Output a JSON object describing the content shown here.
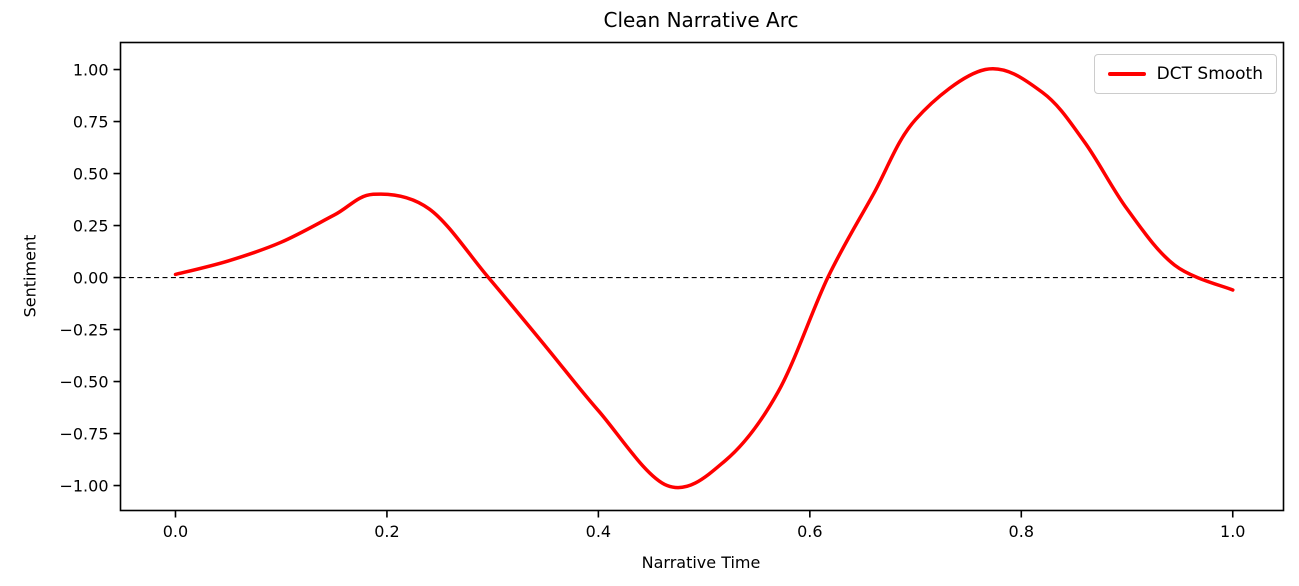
{
  "figure": {
    "background": "#ffffff",
    "text_color": "#000000"
  },
  "chart_data": {
    "type": "line",
    "title": "Clean Narrative Arc",
    "xlabel": "Narrative Time",
    "ylabel": "Sentiment",
    "xlim": [
      -0.052,
      1.048
    ],
    "ylim": [
      -1.12,
      1.13
    ],
    "grid": false,
    "x_ticks": {
      "values": [
        0.0,
        0.2,
        0.4,
        0.6,
        0.8,
        1.0
      ],
      "labels": [
        "0.0",
        "0.2",
        "0.4",
        "0.6",
        "0.8",
        "1.0"
      ]
    },
    "y_ticks": {
      "values": [
        1.0,
        0.75,
        0.5,
        0.25,
        0.0,
        -0.25,
        -0.5,
        -0.75,
        -1.0
      ],
      "labels": [
        "1.00",
        "0.75",
        "0.50",
        "0.25",
        "0.00",
        "−0.25",
        "−0.50",
        "−0.75",
        "−1.00"
      ]
    },
    "reference_lines": [
      {
        "axis": "y",
        "value": 0.0,
        "style": "dashed",
        "color": "#000000",
        "width": 1.1
      }
    ],
    "series": [
      {
        "name": "DCT Smooth",
        "color": "#ff0000",
        "line_width": 3.5,
        "x": [
          0.0,
          0.05,
          0.1,
          0.15,
          0.187,
          0.24,
          0.296,
          0.35,
          0.4,
          0.465,
          0.52,
          0.57,
          0.617,
          0.66,
          0.7,
          0.766,
          0.82,
          0.86,
          0.9,
          0.945,
          1.0
        ],
        "y": [
          0.015,
          0.08,
          0.17,
          0.3,
          0.4,
          0.33,
          0.0,
          -0.33,
          -0.64,
          -1.0,
          -0.88,
          -0.55,
          0.0,
          0.4,
          0.76,
          1.0,
          0.89,
          0.65,
          0.33,
          0.06,
          -0.06
        ]
      }
    ],
    "key_points": {
      "start": [
        0.0,
        0.015
      ],
      "first_peak": [
        0.19,
        0.4
      ],
      "minimum": [
        0.465,
        -1.0
      ],
      "maximum": [
        0.766,
        1.0
      ],
      "end": [
        1.0,
        -0.06
      ],
      "zero_crossings": [
        0.296,
        0.617,
        0.967
      ]
    },
    "legend": {
      "position": "upper right",
      "entries": [
        {
          "label": "DCT Smooth",
          "color": "#ff0000"
        }
      ]
    }
  }
}
